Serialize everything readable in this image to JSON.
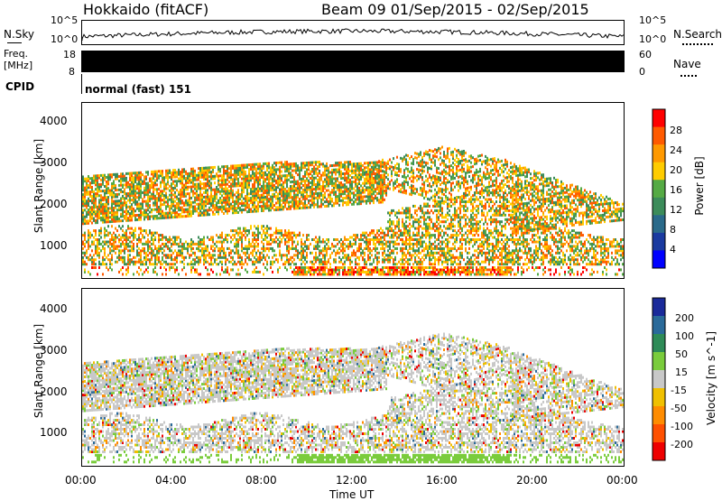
{
  "header": {
    "station": "Hokkaido (fitACF)",
    "beam_info": "Beam 09  01/Sep/2015 - 02/Sep/2015"
  },
  "nsky": {
    "label": "N.Sky",
    "ticks": [
      "10^5",
      "10^0"
    ],
    "right_label": "N.Search"
  },
  "freq": {
    "label_top": "Freq.",
    "label_unit": "[MHz]",
    "left_ticks": [
      "18",
      "8"
    ],
    "right_ticks": [
      "60",
      "0"
    ],
    "right_label": "Nave"
  },
  "cpid": {
    "label": "CPID",
    "value": "normal (fast) 151"
  },
  "chart_data": [
    {
      "type": "heatmap",
      "panel": "power",
      "ylabel": "Slant Range [km]",
      "yticks": [
        "4000",
        "3000",
        "2000",
        "1000"
      ],
      "ylim": [
        180,
        4500
      ],
      "xlim": [
        0,
        24
      ],
      "colorbar": {
        "label": "Power [dB]",
        "ticks": [
          "28",
          "24",
          "20",
          "16",
          "12",
          "8",
          "4"
        ],
        "colors": [
          "#ff0000",
          "#ff5a00",
          "#ff9900",
          "#ffcc00",
          "#55aa44",
          "#3c8c5a",
          "#2a6a8a",
          "#1a3aa0",
          "#0000ff"
        ]
      }
    },
    {
      "type": "heatmap",
      "panel": "velocity",
      "ylabel": "Slant Range [km]",
      "yticks": [
        "4000",
        "3000",
        "2000",
        "1000"
      ],
      "ylim": [
        180,
        4500
      ],
      "xlim": [
        0,
        24
      ],
      "xticks": [
        "00:00",
        "04:00",
        "08:00",
        "12:00",
        "16:00",
        "20:00",
        "00:00"
      ],
      "xlabel": "Time UT",
      "colorbar": {
        "label": "Velocity [m s^-1]",
        "ticks": [
          "200",
          "100",
          "50",
          "15",
          "-15",
          "-50",
          "-100",
          "-200"
        ],
        "colors": [
          "#1a2a9a",
          "#2a6a9a",
          "#2e8b57",
          "#7acc3c",
          "#c8c8c8",
          "#f0c000",
          "#ff8c00",
          "#ff5000",
          "#ee0000"
        ]
      }
    }
  ]
}
